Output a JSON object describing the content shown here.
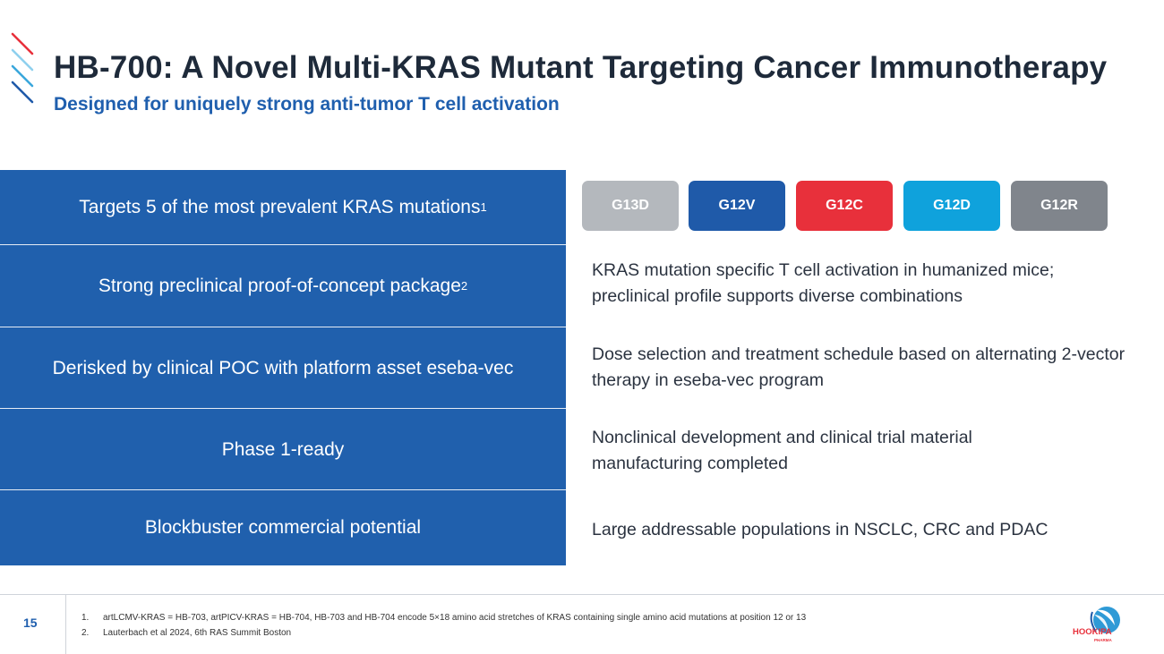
{
  "header": {
    "title": "HB-700: A Novel Multi-KRAS Mutant Targeting Cancer Immunotherapy",
    "subtitle": "Designed for uniquely strong anti-tumor T cell activation"
  },
  "left_rows": [
    {
      "text": "Targets 5 of the most prevalent KRAS mutations",
      "sup": "1"
    },
    {
      "text": "Strong preclinical proof-of-concept package",
      "sup": "2"
    },
    {
      "text": "Derisked by clinical POC with platform asset eseba-vec",
      "sup": ""
    },
    {
      "text": "Phase 1-ready",
      "sup": ""
    },
    {
      "text": "Blockbuster commercial potential",
      "sup": ""
    }
  ],
  "mutations": [
    {
      "label": "G13D",
      "color": "#b4b8bd"
    },
    {
      "label": "G12V",
      "color": "#1f5aa9"
    },
    {
      "label": "G12C",
      "color": "#e8303b"
    },
    {
      "label": "G12D",
      "color": "#0fa2dc"
    },
    {
      "label": "G12R",
      "color": "#80858c"
    }
  ],
  "right_rows": [
    "KRAS mutation specific T cell activation in humanized mice; preclinical profile supports diverse combinations",
    "Dose selection and treatment schedule based on alternating 2-vector therapy in eseba-vec program",
    "Nonclinical development and clinical trial material manufacturing completed",
    "Large addressable populations in NSCLC, CRC and PDAC"
  ],
  "footer": {
    "page_number": "15",
    "footnotes": [
      {
        "num": "1.",
        "text": "artLCMV-KRAS = HB-703, artPICV-KRAS = HB-704, HB-703 and HB-704 encode 5×18 amino acid stretches of KRAS containing single amino acid mutations at position 12 or 13"
      },
      {
        "num": "2.",
        "text": "Lauterbach et al 2024, 6th RAS Summit Boston"
      }
    ],
    "logo_name": "HOOKIPA",
    "logo_sub": "PHARMA"
  },
  "colors": {
    "panel_blue": "#2060ad",
    "title_dark": "#1e2a3a",
    "accent_blue": "#1f5fae",
    "accent_red": "#e8303b",
    "accent_light": "#5bb8e3"
  }
}
